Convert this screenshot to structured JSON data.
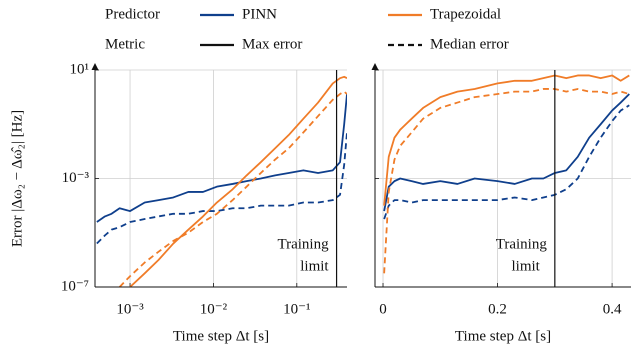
{
  "chart_data": [
    {
      "type": "line",
      "xscale": "log",
      "yscale": "log",
      "ylabel": "Error |Δω₂ − Δω̂₂| [Hz]",
      "xlabel": "Time step Δt [s]",
      "legend": {
        "predictor": {
          "title": "Predictor",
          "items": [
            {
              "name": "PINN",
              "color": "#0f3f8c"
            },
            {
              "name": "Trapezoidal",
              "color": "#f07c28"
            }
          ]
        },
        "metric": {
          "title": "Metric",
          "items": [
            {
              "name": "Max error",
              "dash": "solid"
            },
            {
              "name": "Median error",
              "dash": "dashed"
            }
          ]
        }
      },
      "xlim": [
        0.00038,
        0.4
      ],
      "xticks": [
        {
          "value": 0.001,
          "label": "10⁻³"
        },
        {
          "value": 0.01,
          "label": "10⁻²"
        },
        {
          "value": 0.1,
          "label": "10⁻¹"
        }
      ],
      "ylim": [
        1e-07,
        10
      ],
      "yticks": [
        {
          "value": 1e-07,
          "label": "10⁻⁷"
        },
        {
          "value": 0.001,
          "label": "10⁻³"
        },
        {
          "value": 10,
          "label": "10¹"
        }
      ],
      "grid": true,
      "annotation": {
        "x": 0.3,
        "text": [
          "Training",
          "limit"
        ]
      },
      "x": [
        0.0004,
        0.0005,
        0.0006,
        0.00075,
        0.001,
        0.0015,
        0.0022,
        0.0033,
        0.005,
        0.0075,
        0.011,
        0.017,
        0.025,
        0.037,
        0.055,
        0.08,
        0.12,
        0.18,
        0.27,
        0.33,
        0.37,
        0.4
      ],
      "series": [
        {
          "predictor": "PINN",
          "metric": "Max error",
          "color": "#0f3f8c",
          "dash": "solid",
          "values": [
            2.5e-05,
            4e-05,
            5e-05,
            8e-05,
            6.3e-05,
            0.00013,
            0.00016,
            0.0002,
            0.00032,
            0.00032,
            0.0005,
            0.00063,
            0.0008,
            0.001,
            0.0013,
            0.0016,
            0.002,
            0.0016,
            0.002,
            0.004,
            0.1,
            1.3
          ]
        },
        {
          "predictor": "PINN",
          "metric": "Median error",
          "color": "#0f3f8c",
          "dash": "dashed",
          "values": [
            4e-06,
            8e-06,
            1.3e-05,
            1.6e-05,
            2.5e-05,
            3.2e-05,
            4e-05,
            5e-05,
            5e-05,
            6.3e-05,
            6.3e-05,
            8e-05,
            8e-05,
            0.0001,
            0.0001,
            0.0001,
            0.00013,
            0.00013,
            0.00016,
            0.00025,
            0.0032,
            0.05
          ]
        },
        {
          "predictor": "Trapezoidal",
          "metric": "Max error",
          "color": "#f07c28",
          "dash": "solid",
          "values": [
            null,
            null,
            null,
            null,
            1e-07,
            3.2e-07,
            1e-06,
            4e-06,
            1.3e-05,
            4e-05,
            0.00013,
            0.0004,
            0.0013,
            0.004,
            0.013,
            0.04,
            0.16,
            0.63,
            3.2,
            5,
            5.6,
            5
          ]
        },
        {
          "predictor": "Trapezoidal",
          "metric": "Median error",
          "color": "#f07c28",
          "dash": "dashed",
          "values": [
            null,
            null,
            null,
            1e-07,
            2.5e-07,
            8e-07,
            2e-06,
            5e-06,
            1e-05,
            2.5e-05,
            5e-05,
            0.00016,
            0.0005,
            0.0016,
            0.005,
            0.013,
            0.05,
            0.2,
            0.8,
            1.3,
            1.6,
            1.3
          ]
        }
      ]
    },
    {
      "type": "line",
      "xscale": "linear",
      "yscale": "log",
      "xlabel": "Time step Δt [s]",
      "xlim": [
        -0.014,
        0.433
      ],
      "xticks": [
        0,
        0.2,
        0.4
      ],
      "ylim": [
        1e-07,
        10
      ],
      "yticks": [
        {
          "value": 1e-07
        },
        {
          "value": 0.001
        },
        {
          "value": 10
        }
      ],
      "grid": true,
      "annotation": {
        "x": 0.3,
        "text": [
          "Training",
          "limit"
        ]
      },
      "x": [
        0.002,
        0.01,
        0.02,
        0.03,
        0.05,
        0.07,
        0.1,
        0.13,
        0.16,
        0.2,
        0.23,
        0.26,
        0.28,
        0.3,
        0.32,
        0.34,
        0.36,
        0.38,
        0.4,
        0.415,
        0.43
      ],
      "series": [
        {
          "predictor": "PINN",
          "metric": "Max error",
          "color": "#0f3f8c",
          "dash": "solid",
          "values": [
            6.3e-05,
            0.0005,
            0.0008,
            0.001,
            0.0008,
            0.00063,
            0.0008,
            0.00063,
            0.001,
            0.0008,
            0.00063,
            0.001,
            0.001,
            0.0016,
            0.002,
            0.0063,
            0.032,
            0.1,
            0.32,
            0.63,
            1.3
          ]
        },
        {
          "predictor": "PINN",
          "metric": "Median error",
          "color": "#0f3f8c",
          "dash": "dashed",
          "values": [
            3.2e-05,
            0.0001,
            0.00016,
            0.00016,
            0.00013,
            0.00016,
            0.00016,
            0.00016,
            0.00016,
            0.00016,
            0.0002,
            0.00016,
            0.0002,
            0.00025,
            0.0004,
            0.001,
            0.0063,
            0.032,
            0.13,
            0.32,
            0.5
          ]
        },
        {
          "predictor": "Trapezoidal",
          "metric": "Max error",
          "color": "#f07c28",
          "dash": "solid",
          "values": [
            0.0001,
            0.0063,
            0.032,
            0.063,
            0.16,
            0.4,
            1,
            1.6,
            2,
            3.2,
            4,
            4,
            5,
            6.3,
            5,
            6.3,
            6.3,
            5,
            6.3,
            4,
            6.3
          ]
        },
        {
          "predictor": "Trapezoidal",
          "metric": "Median error",
          "color": "#f07c28",
          "dash": "dashed",
          "values": [
            3.2e-07,
            0.00032,
            0.005,
            0.016,
            0.05,
            0.16,
            0.4,
            0.63,
            1,
            1.3,
            1.6,
            1.6,
            2,
            2,
            1.6,
            2,
            1.6,
            1.6,
            1.3,
            1.6,
            1.3
          ]
        }
      ]
    }
  ]
}
